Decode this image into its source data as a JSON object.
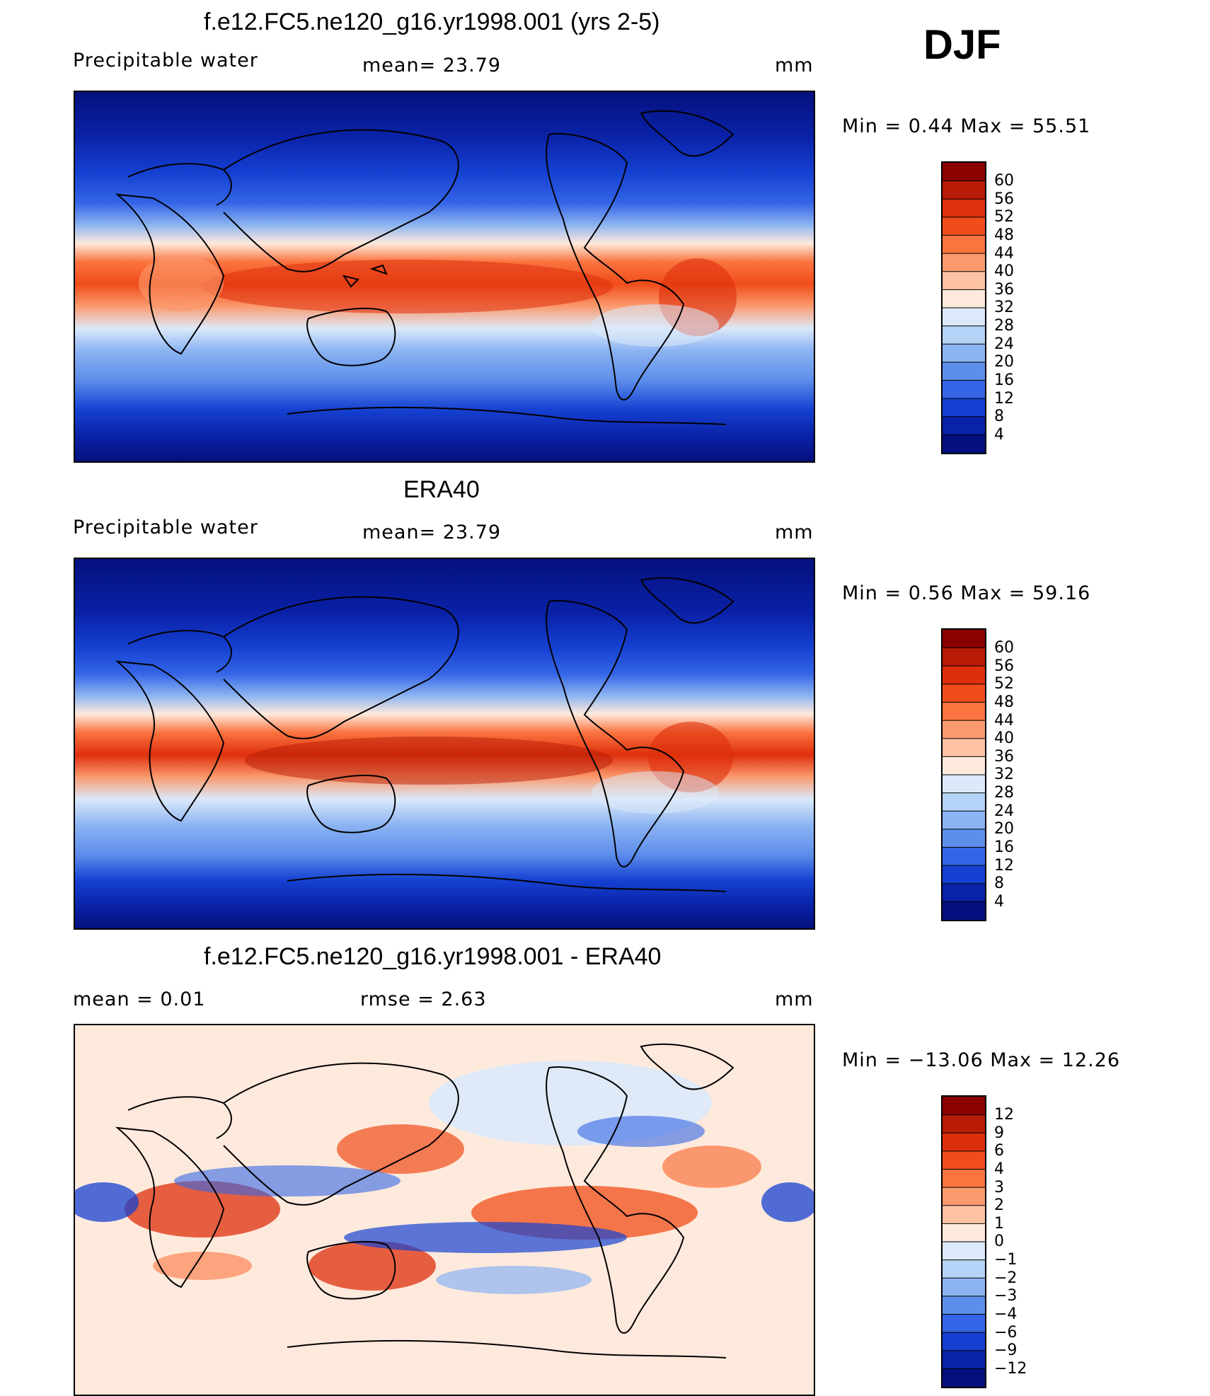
{
  "season": "DJF",
  "panels": [
    {
      "title": "f.e12.FC5.ne120_g16.yr1998.001 (yrs 2-5)",
      "variable": "Precipitable  water",
      "stat_left": "",
      "stat_mid": "mean=   23.79",
      "units": "mm",
      "minmax": "Min  =     0.44  Max  =     55.51",
      "colorbar_labels": [
        "60",
        "56",
        "52",
        "48",
        "44",
        "40",
        "36",
        "32",
        "28",
        "24",
        "20",
        "16",
        "12",
        "8",
        "4"
      ],
      "colorbar_colors": [
        "#8b0000",
        "#b81b06",
        "#de2f0c",
        "#f04d1a",
        "#fa7440",
        "#fb9a6d",
        "#fdc3a4",
        "#feeadc",
        "#dbe9fa",
        "#b5d2f7",
        "#8cb4f2",
        "#5d8eeb",
        "#3465e6",
        "#1541d2",
        "#0a22a8",
        "#05107e"
      ]
    },
    {
      "title": "ERA40",
      "variable": "Precipitable  water",
      "stat_left": "",
      "stat_mid": "mean=   23.79",
      "units": "mm",
      "minmax": "Min  =     0.56  Max  =     59.16",
      "colorbar_labels": [
        "60",
        "56",
        "52",
        "48",
        "44",
        "40",
        "36",
        "32",
        "28",
        "24",
        "20",
        "16",
        "12",
        "8",
        "4"
      ],
      "colorbar_colors": [
        "#8b0000",
        "#b81b06",
        "#de2f0c",
        "#f04d1a",
        "#fa7440",
        "#fb9a6d",
        "#fdc3a4",
        "#feeadc",
        "#dbe9fa",
        "#b5d2f7",
        "#8cb4f2",
        "#5d8eeb",
        "#3465e6",
        "#1541d2",
        "#0a22a8",
        "#05107e"
      ]
    },
    {
      "title": "f.e12.FC5.ne120_g16.yr1998.001 - ERA40",
      "variable": "",
      "stat_left": "mean  =      0.01",
      "stat_mid": "rmse  =      2.63",
      "units": "mm",
      "minmax": "Min  = −13.06  Max  =     12.26",
      "colorbar_labels": [
        "12",
        "9",
        "6",
        "4",
        "3",
        "2",
        "1",
        "0",
        "−1",
        "−2",
        "−3",
        "−4",
        "−6",
        "−9",
        "−12"
      ],
      "colorbar_colors": [
        "#8b0000",
        "#b81b06",
        "#de2f0c",
        "#f04d1a",
        "#fa7440",
        "#fb9a6d",
        "#fdc3a4",
        "#feeadc",
        "#dbe9fa",
        "#b5d2f7",
        "#8cb4f2",
        "#5d8eeb",
        "#3465e6",
        "#1541d2",
        "#0a22a8",
        "#05107e"
      ]
    }
  ]
}
